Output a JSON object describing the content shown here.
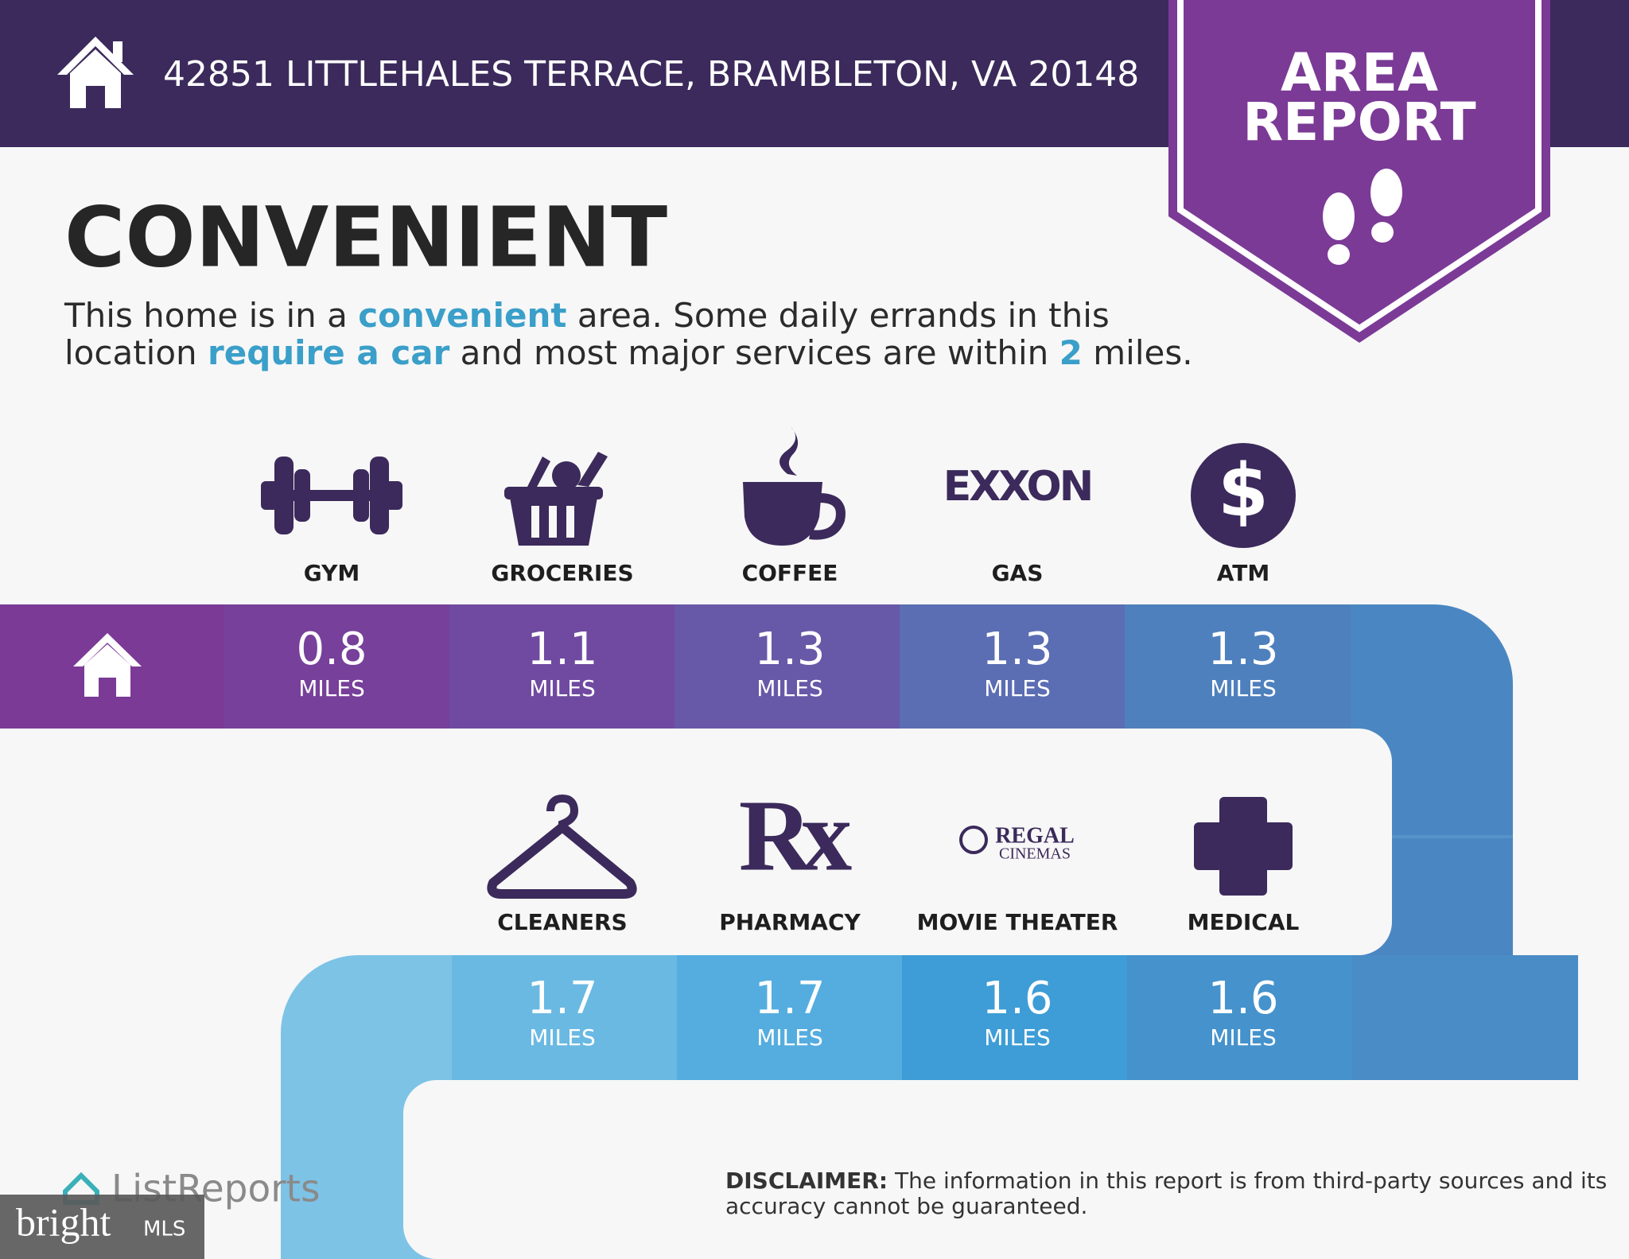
{
  "header": {
    "address": "42851 LITTLEHALES TERRACE, BRAMBLETON, VA 20148"
  },
  "badge": {
    "lines": [
      "AREA",
      "REPORT"
    ]
  },
  "title": "CONVENIENT",
  "description": {
    "lines": [
      [
        {
          "text": "This home is in a ",
          "highlight": false
        },
        {
          "text": "convenient",
          "highlight": true
        },
        {
          "text": " area. Some daily errands in this",
          "highlight": false
        }
      ],
      [
        {
          "text": "location ",
          "highlight": false
        },
        {
          "text": "require a car",
          "highlight": true
        },
        {
          "text": " and most major services are within ",
          "highlight": false
        },
        {
          "text": "2",
          "highlight": true
        },
        {
          "text": " miles.",
          "highlight": false
        }
      ]
    ]
  },
  "unit": "MILES",
  "services": {
    "row1": [
      {
        "name": "GYM",
        "distance": 0.8
      },
      {
        "name": "GROCERIES",
        "distance": 1.1
      },
      {
        "name": "COFFEE",
        "distance": 1.3
      },
      {
        "name": "GAS",
        "distance": 1.3,
        "logo": [
          "EXXON"
        ]
      },
      {
        "name": "ATM",
        "distance": 1.3,
        "logo": [
          "$"
        ]
      }
    ],
    "row2": [
      {
        "name": "CLEANERS",
        "distance": 1.7
      },
      {
        "name": "PHARMACY",
        "distance": 1.7,
        "logo": [
          "Rx"
        ]
      },
      {
        "name": "MOVIE THEATER",
        "distance": 1.6,
        "logo": [
          "REGAL",
          "CINEMAS"
        ]
      },
      {
        "name": "MEDICAL",
        "distance": 1.6
      }
    ]
  },
  "footer": {
    "brand": "ListReports",
    "watermark": [
      "bright",
      "MLS"
    ],
    "disclaimer": {
      "label": "DISCLAIMER:",
      "lines": [
        " The information in this report is from third-party sources and its",
        "accuracy cannot be guaranteed."
      ]
    }
  }
}
